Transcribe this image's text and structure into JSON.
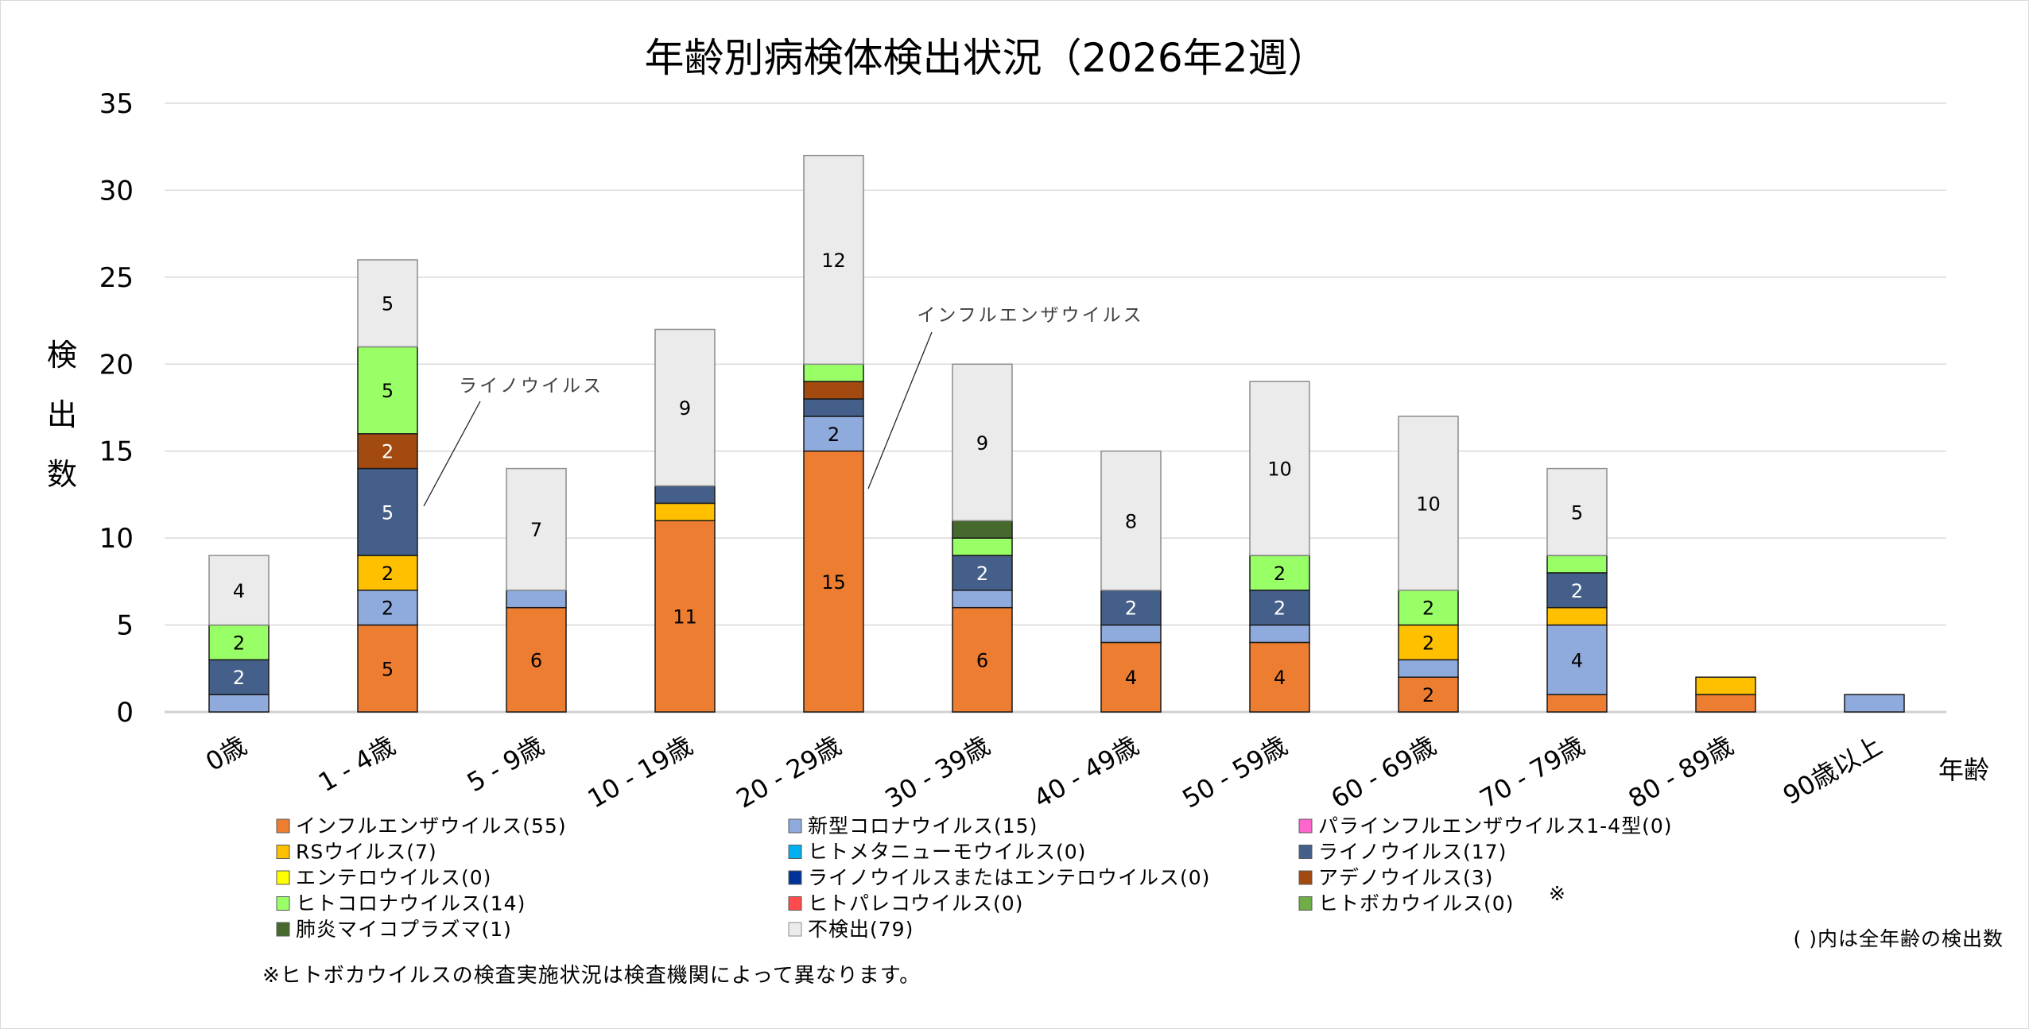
{
  "chart_data": {
    "type": "bar",
    "stacked": true,
    "title": "年齢別病検体検出状況（2026年2週）",
    "xlabel": "年齢",
    "ylabel": "検出数",
    "ylim": [
      0,
      35
    ],
    "yticks": [
      0,
      5,
      10,
      15,
      20,
      25,
      30,
      35
    ],
    "grid": true,
    "categories": [
      "0歳",
      "1 - 4歳",
      "5 - 9歳",
      "10 - 19歳",
      "20 - 29歳",
      "30 - 39歳",
      "40 - 49歳",
      "50 - 59歳",
      "60 - 69歳",
      "70 - 79歳",
      "80 - 89歳",
      "90歳以上"
    ],
    "series": [
      {
        "name": "インフルエンザウイルス",
        "total": 55,
        "color": "#ed7d31",
        "label_color": "#000000",
        "values": [
          0,
          5,
          6,
          11,
          15,
          6,
          4,
          4,
          2,
          1,
          1,
          0
        ]
      },
      {
        "name": "新型コロナウイルス",
        "total": 15,
        "color": "#8faadc",
        "label_color": "#000000",
        "values": [
          1,
          2,
          1,
          0,
          2,
          1,
          1,
          1,
          1,
          4,
          0,
          1
        ]
      },
      {
        "name": "パラインフルエンザウイルス1-4型",
        "total": 0,
        "color": "#ff66cc",
        "label_color": "#000000",
        "values": [
          0,
          0,
          0,
          0,
          0,
          0,
          0,
          0,
          0,
          0,
          0,
          0
        ]
      },
      {
        "name": "RSウイルス",
        "total": 7,
        "color": "#ffc000",
        "label_color": "#000000",
        "values": [
          0,
          2,
          0,
          1,
          0,
          0,
          0,
          0,
          2,
          1,
          1,
          0
        ]
      },
      {
        "name": "ヒトメタニューモウイルス",
        "total": 0,
        "color": "#00b0f0",
        "label_color": "#000000",
        "values": [
          0,
          0,
          0,
          0,
          0,
          0,
          0,
          0,
          0,
          0,
          0,
          0
        ]
      },
      {
        "name": "ライノウイルス",
        "total": 17,
        "color": "#44608a",
        "label_color": "#ffffff",
        "values": [
          2,
          5,
          0,
          1,
          1,
          2,
          2,
          2,
          0,
          2,
          0,
          0
        ]
      },
      {
        "name": "エンテロウイルス",
        "total": 0,
        "color": "#ffff00",
        "label_color": "#000000",
        "values": [
          0,
          0,
          0,
          0,
          0,
          0,
          0,
          0,
          0,
          0,
          0,
          0
        ]
      },
      {
        "name": "ライノウイルスまたはエンテロウイルス",
        "total": 0,
        "color": "#003399",
        "label_color": "#ffffff",
        "values": [
          0,
          0,
          0,
          0,
          0,
          0,
          0,
          0,
          0,
          0,
          0,
          0
        ]
      },
      {
        "name": "アデノウイルス",
        "total": 3,
        "color": "#a24a0f",
        "label_color": "#ffffff",
        "values": [
          0,
          2,
          0,
          0,
          1,
          0,
          0,
          0,
          0,
          0,
          0,
          0
        ]
      },
      {
        "name": "ヒトコロナウイルス",
        "total": 14,
        "color": "#99ff66",
        "label_color": "#000000",
        "values": [
          2,
          5,
          0,
          0,
          1,
          1,
          0,
          2,
          2,
          1,
          0,
          0
        ]
      },
      {
        "name": "ヒトパレコウイルス",
        "total": 0,
        "color": "#ff4b4b",
        "label_color": "#000000",
        "values": [
          0,
          0,
          0,
          0,
          0,
          0,
          0,
          0,
          0,
          0,
          0,
          0
        ]
      },
      {
        "name": "ヒトボカウイルス",
        "total": 0,
        "color": "#70ad47",
        "label_color": "#000000",
        "values": [
          0,
          0,
          0,
          0,
          0,
          0,
          0,
          0,
          0,
          0,
          0,
          0
        ]
      },
      {
        "name": "肺炎マイコプラズマ",
        "total": 1,
        "color": "#46692e",
        "label_color": "#ffffff",
        "values": [
          0,
          0,
          0,
          0,
          0,
          1,
          0,
          0,
          0,
          0,
          0,
          0
        ]
      },
      {
        "name": "不検出",
        "total": 79,
        "color": "#ebebeb",
        "label_color": "#000000",
        "values": [
          4,
          5,
          7,
          9,
          12,
          9,
          8,
          10,
          10,
          5,
          0,
          0
        ]
      }
    ],
    "data_label_min_value": 2,
    "annotations": [
      {
        "text": "ライノウイルス",
        "category": "1 - 4歳",
        "series": "ライノウイルス"
      },
      {
        "text": "インフルエンザウイルス",
        "category": "20 - 29歳",
        "series": "インフルエンザウイルス"
      }
    ],
    "legend": {
      "placement": "bottom",
      "columns": 3,
      "items": [
        "インフルエンザウイルス(55)",
        "新型コロナウイルス(15)",
        "パラインフルエンザウイルス1-4型(0)",
        "RSウイルス(7)",
        "ヒトメタニューモウイルス(0)",
        "ライノウイルス(17)",
        "エンテロウイルス(0)",
        "ライノウイルスまたはエンテロウイルス(0)",
        "アデノウイルス(3)",
        "ヒトコロナウイルス(14)",
        "ヒトパレコウイルス(0)",
        "ヒトボカウイルス(0)",
        "肺炎マイコプラズマ(1)",
        "不検出(79)"
      ],
      "item_series_index": [
        0,
        1,
        2,
        3,
        4,
        5,
        6,
        7,
        8,
        9,
        10,
        11,
        12,
        13
      ]
    },
    "footnotes": {
      "bocavirus_mark": "※",
      "bocavirus_note": "※ヒトボカウイルスの検査実施状況は検査機関によって異なります。",
      "totals_note": "( )内は全年齢の検出数"
    }
  }
}
